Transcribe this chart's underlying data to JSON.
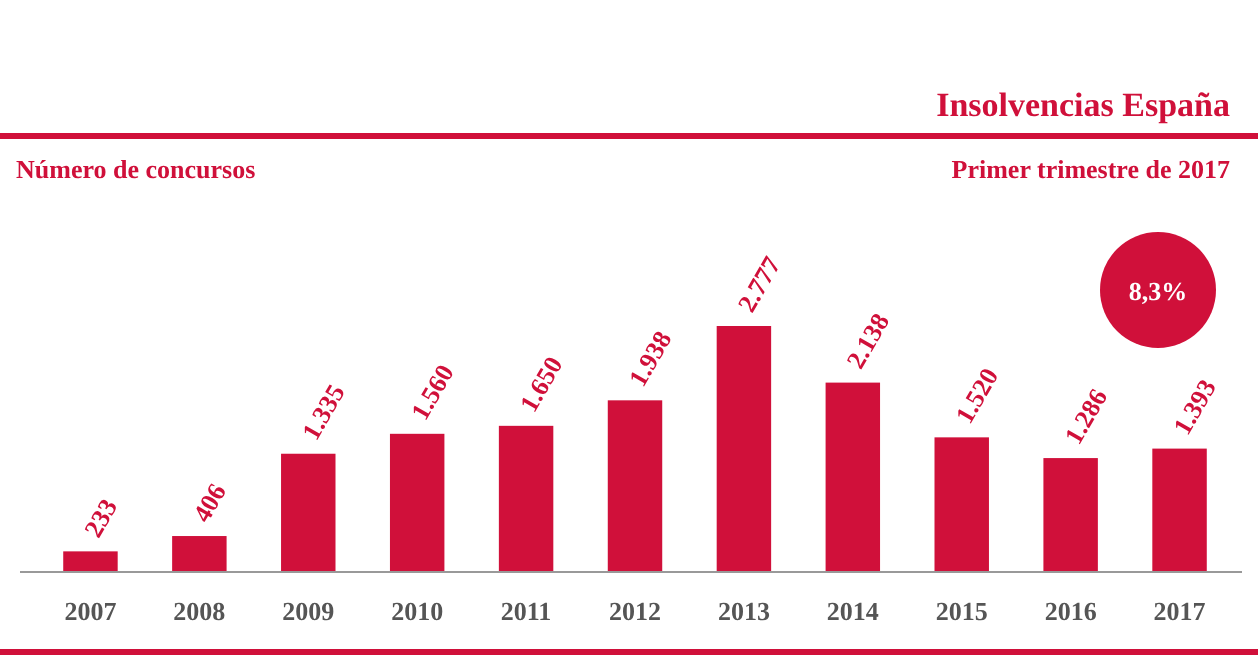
{
  "chart_data": {
    "type": "bar",
    "title": "Insolvencias España",
    "subtitle": "Número de concursos",
    "annotations": [
      "Primer trimestre de 2017",
      "8,3%"
    ],
    "categories": [
      "2007",
      "2008",
      "2009",
      "2010",
      "2011",
      "2012",
      "2013",
      "2014",
      "2015",
      "2016",
      "2017"
    ],
    "values": [
      233,
      406,
      1335,
      1560,
      1650,
      1938,
      2777,
      2138,
      1520,
      1286,
      1393
    ],
    "value_labels": [
      "233",
      "406",
      "1.335",
      "1.560",
      "1.650",
      "1.938",
      "2.777",
      "2.138",
      "1.520",
      "1.286",
      "1.393"
    ],
    "color": "#d0103a"
  }
}
